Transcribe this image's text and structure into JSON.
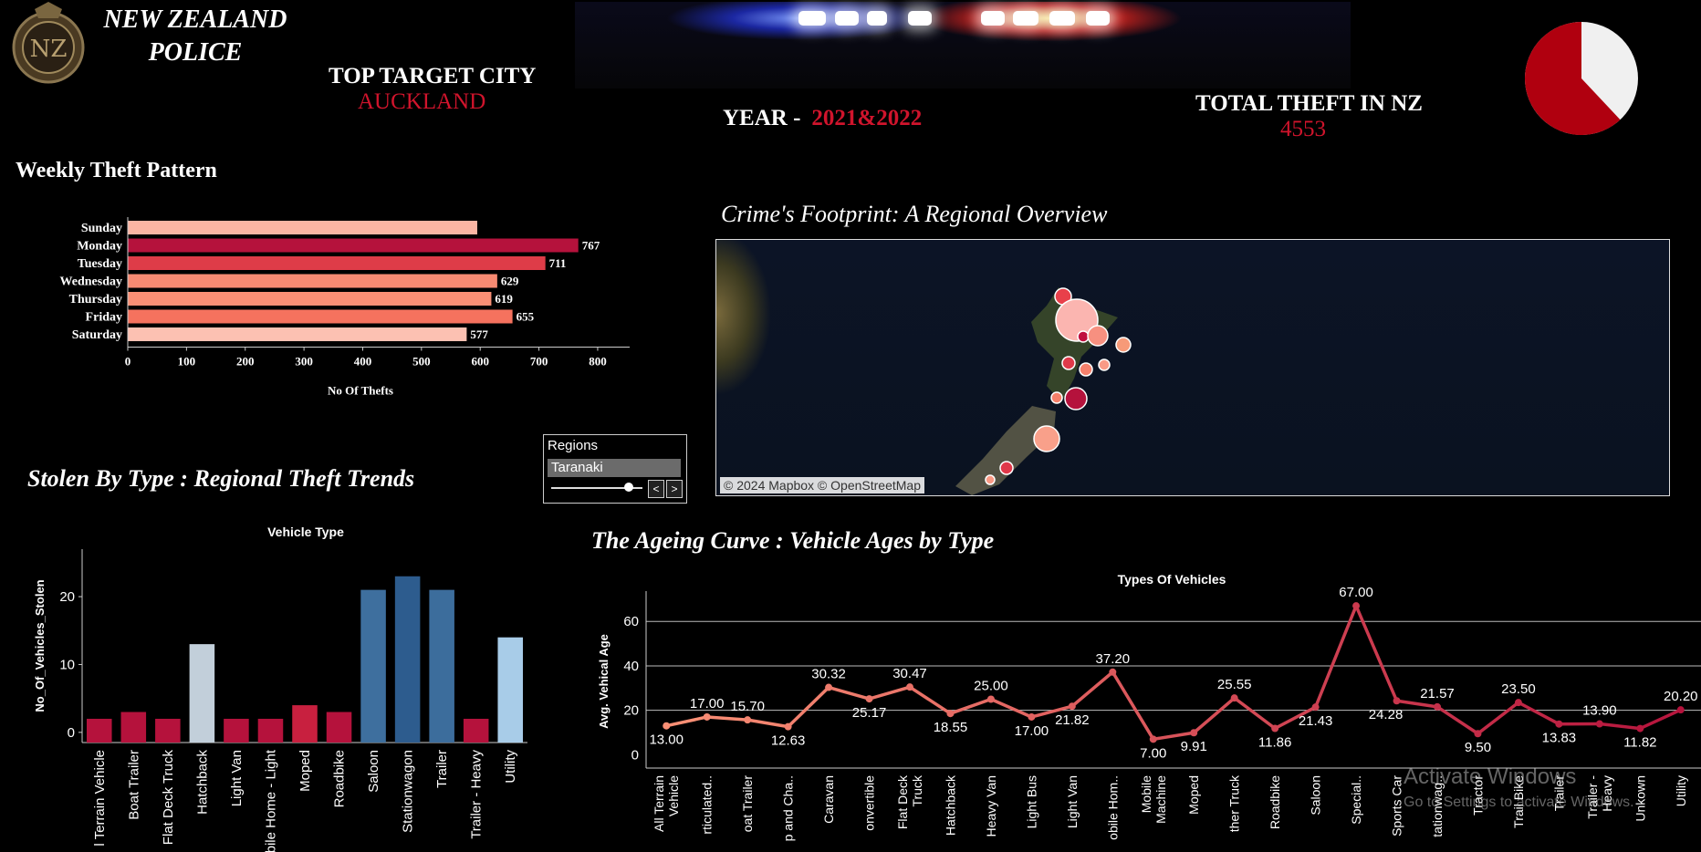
{
  "brand": {
    "line1": "NEW ZEALAND",
    "line2": "POLICE"
  },
  "header": {
    "top_city_label": "TOP TARGET CITY",
    "top_city_value": "AUCKLAND",
    "year_label": "YEAR -",
    "year_value": "2021&2022",
    "total_label": "TOTAL THEFT IN NZ",
    "total_value": "4553"
  },
  "pie": {
    "share_primary": 0.62,
    "colors": [
      "#b0000f",
      "#f0f0f0"
    ]
  },
  "sections": {
    "weekly_title": "Weekly Theft Pattern",
    "footprint_title": "Crime's Footprint: A Regional Overview",
    "stolen_title": "Stolen By Type : Regional Theft Trends",
    "ageing_title": "The Ageing Curve : Vehicle Ages by Type"
  },
  "map": {
    "credit": "© 2024 Mapbox  © OpenStreetMap"
  },
  "regions_filter": {
    "label": "Regions",
    "value": "Taranaki",
    "prev": "<",
    "next": ">"
  },
  "watermark": {
    "line1": "Activate Windows",
    "line2": "Go to Settings to activate Windows."
  },
  "chart_data": [
    {
      "id": "weekly",
      "type": "bar",
      "orientation": "horizontal",
      "categories": [
        "Sunday",
        "Monday",
        "Tuesday",
        "Wednesday",
        "Thursday",
        "Friday",
        "Saturday"
      ],
      "values": [
        595,
        767,
        711,
        629,
        619,
        655,
        577
      ],
      "data_labels": [
        "",
        "767",
        "711",
        "629",
        "619",
        "655",
        "577"
      ],
      "colors": [
        "#fbb5a3",
        "#b5123c",
        "#de3c48",
        "#f78a72",
        "#f98f75",
        "#f5725e",
        "#fcc1b2"
      ],
      "xlabel": "No Of Thefts",
      "xticks": [
        0,
        100,
        200,
        300,
        400,
        500,
        600,
        700,
        800
      ],
      "xlim": [
        0,
        870
      ]
    },
    {
      "id": "vehicle_type",
      "type": "bar",
      "title": "Vehicle Type",
      "ylabel": "No_Of_Vehicles_Stolen",
      "categories": [
        "All Terrain Vehicle",
        "Boat Trailer",
        "Flat Deck Truck",
        "Hatchback",
        "Light Van",
        "Mobile Home - Light",
        "Moped",
        "Roadbike",
        "Saloon",
        "Stationwagon",
        "Trailer",
        "Trailer - Heavy",
        "Utility"
      ],
      "tick_labels": [
        "l Terrain Vehicle",
        "Boat Trailer",
        "Flat Deck Truck",
        "Hatchback",
        "Light Van",
        "bile Home - Light",
        "Moped",
        "Roadbike",
        "Saloon",
        "Stationwagon",
        "Trailer",
        "Trailer - Heavy",
        "Utility"
      ],
      "values": [
        2,
        3,
        2,
        13,
        2,
        2,
        4,
        3,
        21,
        23,
        21,
        2,
        14
      ],
      "colors": [
        "#b5123c",
        "#b5123c",
        "#b5123c",
        "#c2cfda",
        "#b5123c",
        "#b5123c",
        "#c8203f",
        "#b5123c",
        "#3e6f9e",
        "#2d5c8e",
        "#3c6d9c",
        "#b5123c",
        "#a8cce8"
      ],
      "yticks": [
        0,
        10,
        20
      ],
      "ylim": [
        0,
        27
      ]
    },
    {
      "id": "ageing",
      "type": "line",
      "title": "Types Of Vehicles",
      "ylabel": "Avg. Vehical Age",
      "x": [
        "All Terrain Vehicle",
        "Articulated...",
        "Boat Trailer",
        "Camp and Ca...",
        "Caravan",
        "Convertible",
        "Flat Deck Truck",
        "Hatchback",
        "Heavy Van",
        "Light Bus",
        "Light Van",
        "Mobile Hom...",
        "Mobile Machine",
        "Moped",
        "Other Truck",
        "Roadbike",
        "Saloon",
        "Special...",
        "Sports Car",
        "Stationwag...",
        "Tractor",
        "Trail Bike",
        "Trailer",
        "Trailer - Heavy",
        "Unkown",
        "Utility"
      ],
      "tick_labels": [
        "All Terrain\nVehicle",
        "rticulated..",
        "oat Trailer",
        "p and Cha..",
        "Caravan",
        "onvertible",
        "Flat Deck\nTruck",
        "Hatchback",
        "Heavy Van",
        "Light Bus",
        "Light Van",
        "obile Hom..",
        "Mobile\nMachine",
        "Moped",
        "ther Truck",
        "Roadbike",
        "Saloon",
        "Special..",
        "Sports Car",
        "tationwag..",
        "Tractor",
        "Trail Bike",
        "Trailer",
        "Trailer -\nHeavy",
        "Unkown",
        "Utility"
      ],
      "values": [
        13.0,
        17.0,
        15.7,
        12.63,
        30.32,
        25.17,
        30.47,
        18.55,
        25.0,
        17.0,
        21.82,
        37.2,
        7.0,
        9.91,
        25.55,
        11.86,
        21.43,
        67.0,
        24.28,
        21.57,
        9.5,
        23.5,
        13.83,
        13.9,
        11.82,
        20.2
      ],
      "data_labels": [
        "13.00",
        "17.00",
        "15.70",
        "12.63",
        "30.32",
        "25.17",
        "30.47",
        "18.55",
        "25.00",
        "17.00",
        "21.82",
        "37.20",
        "7.00",
        "9.91",
        "25.55",
        "11.86",
        "21.43",
        "67.00",
        "24.28",
        "21.57",
        "9.50",
        "23.50",
        "13.83",
        "13.90",
        "11.82",
        "20.20"
      ],
      "label_pos": [
        "below",
        "above",
        "above",
        "below",
        "above",
        "below",
        "above",
        "below",
        "above",
        "below",
        "below",
        "above",
        "below",
        "below",
        "above",
        "below",
        "below",
        "above",
        "right",
        "above",
        "below",
        "above",
        "below",
        "above",
        "below",
        "above"
      ],
      "color_start": "#f98f75",
      "color_end": "#b5123c",
      "yticks": [
        0,
        20,
        40,
        60
      ],
      "ylim": [
        0,
        72
      ],
      "grid": true
    }
  ]
}
